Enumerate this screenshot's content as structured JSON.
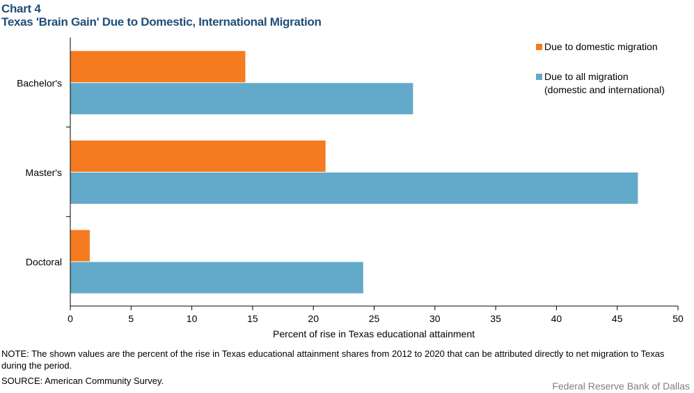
{
  "header": {
    "chart_number": "Chart 4",
    "title": "Texas 'Brain Gain' Due to Domestic, International Migration"
  },
  "colors": {
    "domestic": "#f47b20",
    "all": "#63a9c9",
    "title": "#1f4e79"
  },
  "chart_data": {
    "type": "bar",
    "orientation": "horizontal",
    "categories": [
      "Bachelor's",
      "Master's",
      "Doctoral"
    ],
    "series": [
      {
        "name": "Due to domestic migration",
        "values": [
          14.4,
          21.0,
          1.6
        ]
      },
      {
        "name": "Due to all migration (domestic and international)",
        "values": [
          28.2,
          46.7,
          24.1
        ]
      }
    ],
    "xlabel": "Percent of rise in Texas educational attainment",
    "xlim": [
      0,
      50
    ],
    "xticks": [
      0,
      5,
      10,
      15,
      20,
      25,
      30,
      35,
      40,
      45,
      50
    ],
    "grid": false,
    "legend_position": "top-right"
  },
  "legend": {
    "domestic_label": "Due to domestic migration",
    "all_label_line1": "Due to all migration",
    "all_label_line2": "(domestic and international)"
  },
  "footer": {
    "note": "NOTE: The shown values are the percent of the rise in Texas educational attainment shares from 2012 to 2020 that can be attributed directly to net migration to Texas during the period.",
    "source": "SOURCE: American Community Survey.",
    "credit": "Federal Reserve Bank of Dallas"
  }
}
